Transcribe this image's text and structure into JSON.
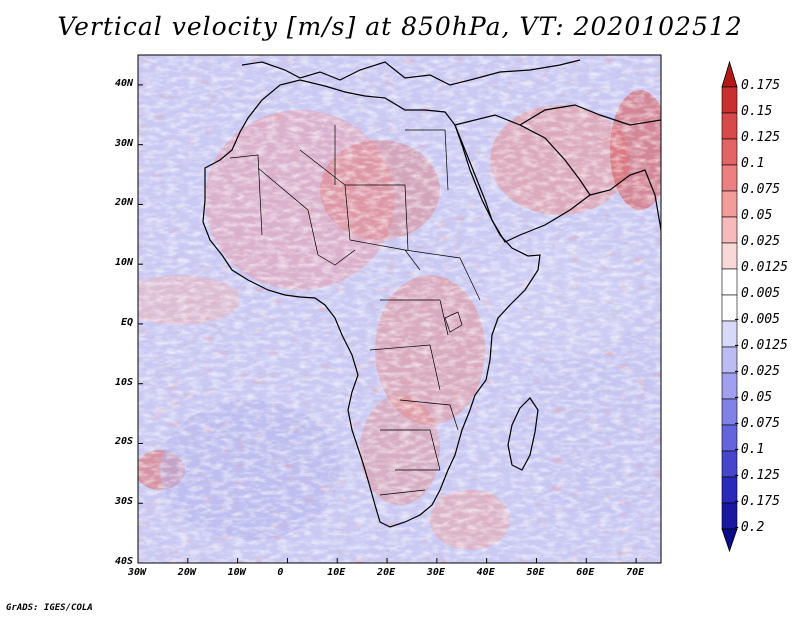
{
  "title": "Vertical velocity [m/s] at 850hPa, VT: 2020102512",
  "footer": "GrADS: IGES/COLA",
  "map": {
    "lat_labels": [
      "40N",
      "30N",
      "20N",
      "10N",
      "EQ",
      "10S",
      "20S",
      "30S",
      "40S"
    ],
    "lon_labels": [
      "30W",
      "20W",
      "10W",
      "0",
      "10E",
      "20E",
      "30E",
      "40E",
      "50E",
      "60E",
      "70E"
    ],
    "field_variable": "vertical velocity",
    "units": "m/s",
    "level": "850hPa",
    "valid_time": "2020102512"
  },
  "colorbar": {
    "labels": [
      "0.175",
      "0.15",
      "0.125",
      "0.1",
      "0.075",
      "0.05",
      "0.025",
      "0.0125",
      "0.005",
      "-0.005",
      "-0.0125",
      "-0.025",
      "-0.05",
      "-0.075",
      "-0.1",
      "-0.125",
      "-0.175",
      "-0.2"
    ],
    "colors": [
      "#b21a1a",
      "#c83030",
      "#d84a4a",
      "#e36464",
      "#ec8080",
      "#f29c9c",
      "#f7baba",
      "#fbd8d8",
      "#ffffff",
      "#ffffff",
      "#d8d8f8",
      "#bcbcf4",
      "#a0a0ee",
      "#8282e6",
      "#6464dc",
      "#4646cc",
      "#2a2ab8",
      "#1818a0",
      "#0c0c8a"
    ]
  },
  "chart_data": {
    "type": "heatmap",
    "title": "Vertical velocity [m/s] at 850hPa, VT: 2020102512",
    "x_range": [
      -30,
      75
    ],
    "y_range": [
      -40,
      45
    ],
    "x_ticks": [
      "30W",
      "20W",
      "10W",
      "0",
      "10E",
      "20E",
      "30E",
      "40E",
      "50E",
      "60E",
      "70E"
    ],
    "y_ticks": [
      "40N",
      "30N",
      "20N",
      "10N",
      "EQ",
      "10S",
      "20S",
      "30S",
      "40S"
    ],
    "color_levels": [
      0.175,
      0.15,
      0.125,
      0.1,
      0.075,
      0.05,
      0.025,
      0.0125,
      0.005,
      -0.005,
      -0.0125,
      -0.025,
      -0.05,
      -0.075,
      -0.1,
      -0.125,
      -0.175,
      -0.2
    ]
  }
}
